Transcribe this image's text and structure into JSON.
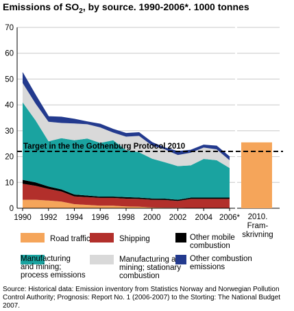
{
  "title": "Emissions of SO",
  "title_sub": "2",
  "title_rest": ", by source. 1990-2006*. 1000 tonnes",
  "chart_data": {
    "type": "area",
    "stacked": true,
    "x": [
      1990,
      1991,
      1992,
      1993,
      1994,
      1995,
      1996,
      1997,
      1998,
      1999,
      2000,
      2001,
      2002,
      2003,
      2004,
      2005,
      2006
    ],
    "x_tick_labels": [
      "1990",
      "1992",
      "1994",
      "1996",
      "1998",
      "2000",
      "2002",
      "2004",
      "2006*"
    ],
    "ylim": [
      0,
      70
    ],
    "y_ticks": [
      0,
      10,
      20,
      30,
      40,
      50,
      60,
      70
    ],
    "grid": "horizontal",
    "series": [
      {
        "name": "Road traffic",
        "color": "#f5a55a",
        "values": [
          3.3,
          3.3,
          3.0,
          2.6,
          1.6,
          1.3,
          1.0,
          1.0,
          0.7,
          0.6,
          0.3,
          0.2,
          0.2,
          0.1,
          0.1,
          0.1,
          0.1
        ]
      },
      {
        "name": "Shipping",
        "color": "#b22f2b",
        "values": [
          6.2,
          5.4,
          4.5,
          3.9,
          3.0,
          3.0,
          3.0,
          3.0,
          3.0,
          3.0,
          3.0,
          3.0,
          2.6,
          3.5,
          3.5,
          3.5,
          3.5
        ]
      },
      {
        "name": "Other mobile combustion",
        "color": "#000000",
        "values": [
          1.5,
          1.3,
          0.9,
          0.8,
          0.7,
          0.6,
          0.5,
          0.5,
          0.6,
          0.5,
          0.5,
          0.5,
          0.5,
          0.5,
          0.5,
          0.5,
          0.5
        ]
      },
      {
        "name": "Manufacturing and mining; process emissions",
        "color": "#1aa3a0",
        "values": [
          30.0,
          24.0,
          17.5,
          19.8,
          21.0,
          22.1,
          20.8,
          21.8,
          18.2,
          17.6,
          15.4,
          14.1,
          13.0,
          12.5,
          15.0,
          14.5,
          11.5
        ]
      },
      {
        "name": "Manufacturing and mining; stationary combustion",
        "color": "#d9d9d9",
        "values": [
          7.5,
          6.5,
          7.6,
          5.9,
          6.5,
          5.5,
          6.0,
          3.0,
          5.2,
          6.3,
          5.1,
          5.0,
          4.3,
          4.9,
          4.4,
          4.2,
          3.0
        ]
      },
      {
        "name": "Other combustion emissions",
        "color": "#233a8e",
        "values": [
          4.0,
          3.3,
          2.0,
          2.3,
          1.7,
          1.0,
          1.3,
          1.3,
          1.3,
          1.3,
          1.2,
          0.6,
          1.4,
          1.0,
          1.0,
          1.3,
          1.3
        ]
      }
    ],
    "target": {
      "label": "Target in the the Gothenburg Protocol 2010",
      "value": 22
    },
    "projection": {
      "label_lines": [
        "2010.",
        "Fram-",
        "skrivning"
      ],
      "value": 25.5,
      "color": "#f5a55a"
    }
  },
  "legend": [
    {
      "label_lines": [
        "Road traffic"
      ],
      "color": "#f5a55a"
    },
    {
      "label_lines": [
        "Shipping"
      ],
      "color": "#b22f2b"
    },
    {
      "label_lines": [
        "Other mobile",
        "combustion"
      ],
      "color": "#000000"
    },
    {
      "label_lines": [
        "Manufacturing",
        "and mining;",
        "process emissions"
      ],
      "color": "#1aa3a0"
    },
    {
      "label_lines": [
        "Manufacturing and",
        "mining; stationary",
        "combustion"
      ],
      "color": "#d9d9d9"
    },
    {
      "label_lines": [
        "Other combustion",
        "emissions"
      ],
      "color": "#233a8e"
    }
  ],
  "source_lines": [
    "Source: Historical data: Emission inventory from Statistics Norway and Norwegian Pollution",
    "Control Authority; Prognosis: Report No. 1 (2006-2007) to the Storting: The National Budget",
    "2007."
  ]
}
